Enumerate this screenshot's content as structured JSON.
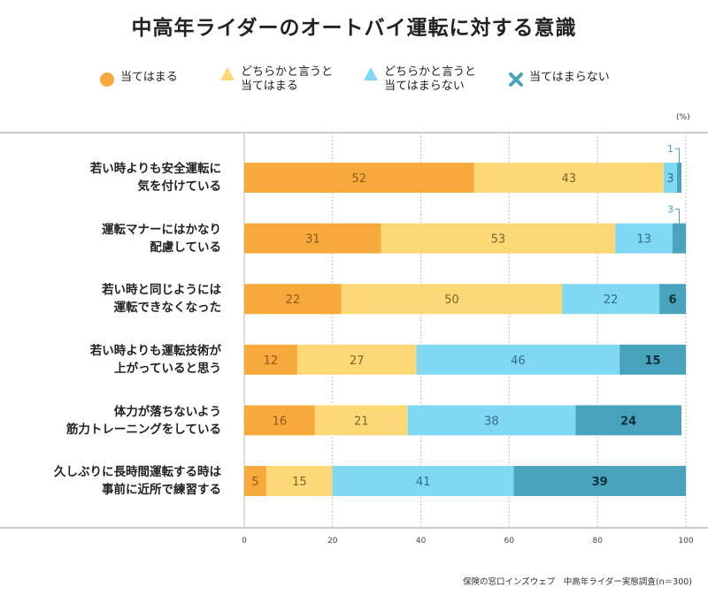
{
  "title": "中高年ライダーのオートバイ運転に対する意識",
  "unit_label": "(%)",
  "source": "保険の窓口インズウェブ　中高年ライダー実態調査(n＝300)",
  "legend": [
    {
      "label": "当てはまる",
      "symbol": "circle",
      "color": "#F7A93B"
    },
    {
      "label_lines": [
        "どちらかと言うと",
        "当てはまる"
      ],
      "symbol": "triangle",
      "color": "#FDD876"
    },
    {
      "label_lines": [
        "どちらかと言うと",
        "当てはまらない"
      ],
      "symbol": "triangle",
      "color": "#80D8F5"
    },
    {
      "label": "当てはまらない",
      "symbol": "cross",
      "color": "#4AA3BC"
    }
  ],
  "chart_data": {
    "type": "bar",
    "orientation": "horizontal",
    "stacked": true,
    "title": "中高年ライダーのオートバイ運転に対する意識",
    "xlim": [
      0,
      100
    ],
    "xticks": [
      0,
      20,
      40,
      60,
      80,
      100
    ],
    "grid": true,
    "categories": [
      [
        "若い時よりも安全運転に",
        "気を付けている"
      ],
      [
        "運転マナーにはかなり",
        "配慮している"
      ],
      [
        "若い時と同じようには",
        "運転できなくなった"
      ],
      [
        "若い時よりも運転技術が",
        "上がっていると思う"
      ],
      [
        "体力が落ちないよう",
        "筋力トレーニングをしている"
      ],
      [
        "久しぶりに長時間運転する時は",
        "事前に近所で練習する"
      ]
    ],
    "series": [
      {
        "name": "当てはまる",
        "color": "#F7A93B",
        "label_color": "#8a5a1a",
        "values": [
          52,
          31,
          22,
          12,
          16,
          5
        ]
      },
      {
        "name": "どちらかと言うと当てはまる",
        "color": "#FDD876",
        "label_color": "#7a6428",
        "values": [
          43,
          53,
          50,
          27,
          21,
          15
        ]
      },
      {
        "name": "どちらかと言うと当てはまらない",
        "color": "#80D8F5",
        "label_color": "#2f6f86",
        "values": [
          3,
          13,
          22,
          46,
          38,
          41
        ]
      },
      {
        "name": "当てはまらない",
        "color": "#4AA3BC",
        "label_color": "#0f2f3a",
        "values": [
          1,
          3,
          6,
          15,
          24,
          39
        ]
      }
    ],
    "callouts": [
      {
        "category_index": 0,
        "series_index": 3,
        "text": "1"
      },
      {
        "category_index": 1,
        "series_index": 3,
        "text": "3"
      }
    ],
    "legend_position": "top"
  }
}
